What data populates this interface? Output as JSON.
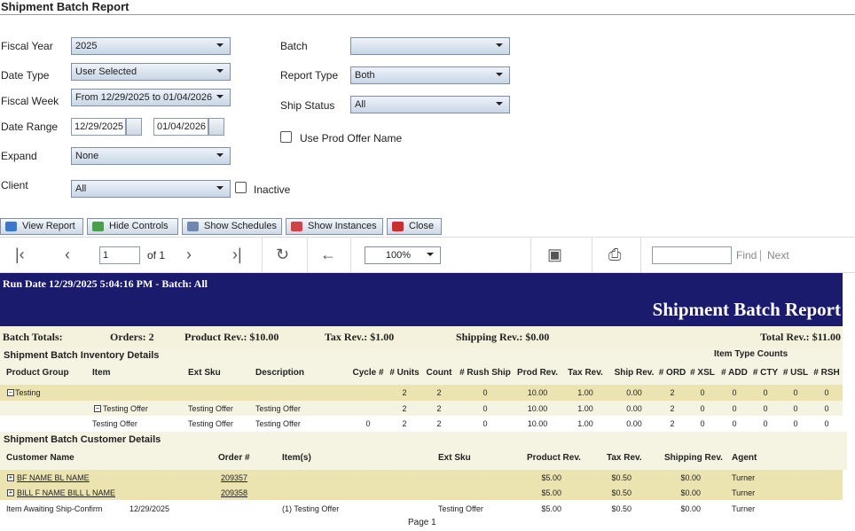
{
  "header": {
    "title": "Shipment Batch Report"
  },
  "form": {
    "fiscal_year": {
      "label": "Fiscal Year",
      "value": "2025"
    },
    "date_type": {
      "label": "Date Type",
      "value": "User Selected"
    },
    "fiscal_week": {
      "label": "Fiscal Week",
      "value": "From 12/29/2025 to 01/04/2026"
    },
    "date_range": {
      "label": "Date Range",
      "from": "12/29/2025",
      "to": "01/04/2026"
    },
    "expand": {
      "label": "Expand",
      "value": "None"
    },
    "client": {
      "label": "Client",
      "value": "All"
    },
    "inactive": {
      "label": "Inactive"
    },
    "batch": {
      "label": "Batch"
    },
    "report_type": {
      "label": "Report Type",
      "value": "Both"
    },
    "ship_status": {
      "label": "Ship Status",
      "value": "All"
    },
    "use_prod_offer_name": {
      "label": "Use Prod Offer Name"
    }
  },
  "buttons": [
    "View Report",
    "Hide Controls",
    "Show Schedules",
    "Show Instances",
    "Close"
  ],
  "toolbar": {
    "page": "1",
    "of": "of 1",
    "zoom": "100%",
    "find": "Find",
    "next": "Next"
  },
  "report": {
    "run_info": "Run Date 12/29/2025 5:04:16 PM - Batch: All",
    "title": "Shipment Batch Report",
    "totals": [
      "Batch Totals:",
      "Orders: 2",
      "Product Rev.: $10.00",
      "Tax Rev.: $1.00",
      "Shipping Rev.: $0.00",
      "Total Rev.: $11.00"
    ],
    "inventory": {
      "title": "Shipment Batch Inventory Details",
      "group_header": "Item Type Counts",
      "columns": [
        "Product Group",
        "Item",
        "Ext Sku",
        "Description",
        "Cycle #",
        "# Units",
        "Count",
        "# Rush Ship",
        "Prod Rev.",
        "Tax Rev.",
        "Ship Rev.",
        "# ORD",
        "# XSL",
        "# ADD",
        "# CTY",
        "# USL",
        "# RSH"
      ],
      "rows": [
        [
          "Testing",
          null,
          null,
          null,
          null,
          "2",
          "2",
          "0",
          "10.00",
          "1.00",
          "0.00",
          "2",
          "0",
          "0",
          "0",
          "0",
          "0"
        ],
        [
          null,
          "Testing Offer",
          "Testing Offer",
          "Testing Offer",
          null,
          "2",
          "2",
          "0",
          "10.00",
          "1.00",
          "0.00",
          "2",
          "0",
          "0",
          "0",
          "0",
          "0"
        ],
        [
          null,
          "Testing Offer",
          "Testing Offer",
          "Testing Offer",
          "0",
          "2",
          "2",
          "0",
          "10.00",
          "1.00",
          "0.00",
          "2",
          "0",
          "0",
          "0",
          "0",
          "0"
        ]
      ]
    },
    "customer": {
      "title": "Shipment Batch Customer Details",
      "columns": [
        "Customer Name",
        "Order #",
        "Item(s)",
        "Ext Sku",
        "Product Rev.",
        "Tax Rev.",
        "Shipping Rev.",
        "Agent"
      ],
      "rows": [
        [
          "BF NAME BL NAME",
          "209357",
          null,
          null,
          "$5.00",
          "$0.50",
          "$0.00",
          "Turner"
        ],
        [
          "BILL F NAME BILL L NAME",
          "209358",
          null,
          null,
          "$5.00",
          "$0.50",
          "$0.00",
          "Turner"
        ],
        [
          "Item Awaiting Ship-Confirm",
          "12/29/2025",
          "(1) Testing Offer",
          "Testing Offer",
          "$5.00",
          "$0.50",
          "$0.00",
          "Turner"
        ]
      ]
    },
    "footer": "Page 1"
  }
}
